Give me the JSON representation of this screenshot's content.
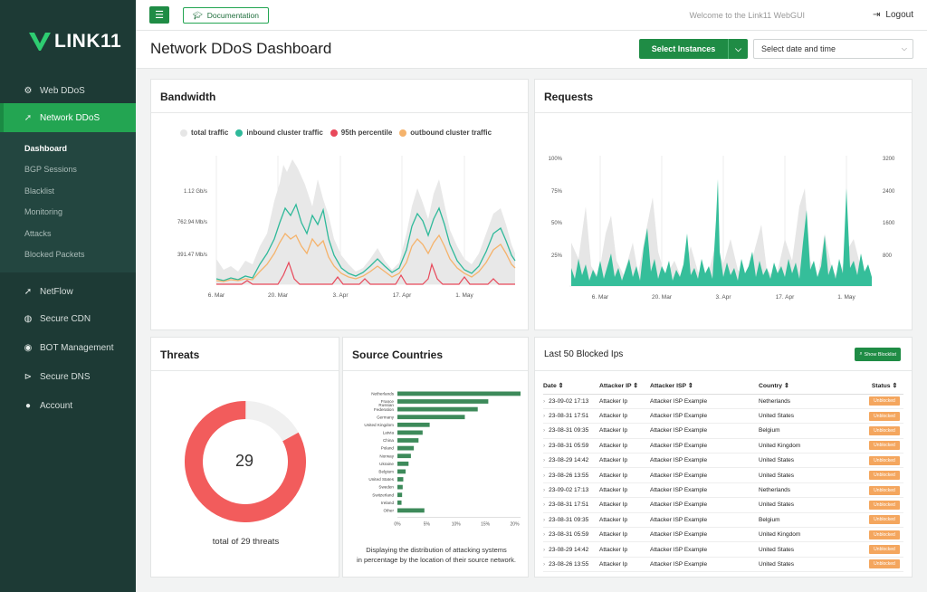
{
  "brand": {
    "name": "LINK11"
  },
  "nav": {
    "items": [
      {
        "label": "Web DDoS",
        "icon": "gears-icon"
      },
      {
        "label": "Network DDoS",
        "icon": "rocket-icon"
      },
      {
        "label": "NetFlow",
        "icon": "rocket-icon"
      },
      {
        "label": "Secure CDN",
        "icon": "globe-icon"
      },
      {
        "label": "BOT Management",
        "icon": "android-icon"
      },
      {
        "label": "Secure DNS",
        "icon": "dns-icon"
      },
      {
        "label": "Account",
        "icon": "user-icon"
      }
    ],
    "sub": [
      "Dashboard",
      "BGP Sessions",
      "Blacklist",
      "Monitoring",
      "Attacks",
      "Blocked Packets"
    ]
  },
  "topbar": {
    "documentation": "Documentation",
    "welcome": "Welcome to the Link11 WebGUI",
    "logout": "Logout"
  },
  "header": {
    "title": "Network DDoS Dashboard",
    "select_instances": "Select Instances",
    "date_placeholder": "Select date and time"
  },
  "bandwidth": {
    "title": "Bandwidth",
    "legend": [
      {
        "label": "total traffic",
        "color": "#e6e6e6"
      },
      {
        "label": "inbound cluster traffic",
        "color": "#2fb99a"
      },
      {
        "label": "95th percentile",
        "color": "#e8485a"
      },
      {
        "label": "outbound cluster traffic",
        "color": "#f5b36c"
      }
    ],
    "y_ticks": [
      "1.12 Gb/s",
      "762.94 Mb/s",
      "391.47 Mb/s"
    ],
    "x_ticks": [
      "6. Mar",
      "20. Mar",
      "3. Apr",
      "17. Apr",
      "1. May"
    ]
  },
  "requests": {
    "title": "Requests",
    "y_left": [
      "100%",
      "75%",
      "50%",
      "25%"
    ],
    "y_right": [
      "3200",
      "2400",
      "1600",
      "800"
    ],
    "x_ticks": [
      "6. Mar",
      "20. Mar",
      "3. Apr",
      "17. Apr",
      "1. May"
    ]
  },
  "threats": {
    "title": "Threats",
    "count": "29",
    "caption": "total of 29 threats",
    "fraction": 0.83,
    "color": "#f25c5c"
  },
  "source_countries": {
    "title": "Source Countries",
    "caption1": "Displaying the distribution of attacking systems",
    "caption2": "in percentage by the location of their source network.",
    "x_ticks": [
      "0%",
      "5%",
      "10%",
      "15%",
      "20%"
    ]
  },
  "chart_data": {
    "type": "bar",
    "orientation": "horizontal",
    "categories": [
      "Netherlands",
      "France",
      "Russian Federation",
      "Germany",
      "United Kingdom",
      "Latvia",
      "China",
      "Poland",
      "Norway",
      "Ukraine",
      "Belgium",
      "United States",
      "Sweden",
      "Switzerland",
      "Ireland",
      "Other"
    ],
    "category_lines": [
      [
        "Netherlands"
      ],
      [
        "France"
      ],
      [
        "Russian",
        "Federation"
      ],
      [
        "Germany"
      ],
      [
        "United Kingdom"
      ],
      [
        "Latvia"
      ],
      [
        "China"
      ],
      [
        "Poland"
      ],
      [
        "Norway"
      ],
      [
        "Ukraine"
      ],
      [
        "Belgium"
      ],
      [
        "United States"
      ],
      [
        "Sweden"
      ],
      [
        "Switzerland"
      ],
      [
        "Ireland"
      ],
      [
        "Other"
      ]
    ],
    "values": [
      21,
      15.5,
      13.7,
      11.5,
      5.5,
      4.3,
      3.6,
      2.8,
      2.3,
      1.9,
      1.4,
      1.0,
      0.9,
      0.8,
      0.7,
      4.6
    ],
    "xlim": [
      0,
      21
    ],
    "color": "#3d8a5a"
  },
  "blocked": {
    "title": "Last 50 Blocked Ips",
    "show_button": "Show Blocklist",
    "columns": [
      "Date",
      "Attacker IP",
      "Attacker ISP",
      "Country",
      "Status"
    ],
    "rows": [
      {
        "date": "23-09-02 17:13",
        "ip": "Attacker Ip",
        "isp": "Attacker ISP Example",
        "country": "Netherlands",
        "status": "Unblocked"
      },
      {
        "date": "23-08-31 17:51",
        "ip": "Attacker Ip",
        "isp": "Attacker ISP Example",
        "country": "United States",
        "status": "Unblocked"
      },
      {
        "date": "23-08-31 09:35",
        "ip": "Attacker Ip",
        "isp": "Attacker ISP Example",
        "country": "Belgium",
        "status": "Unblocked"
      },
      {
        "date": "23-08-31 05:59",
        "ip": "Attacker Ip",
        "isp": "Attacker ISP Example",
        "country": "United Kingdom",
        "status": "Unblocked"
      },
      {
        "date": "23-08-29 14:42",
        "ip": "Attacker Ip",
        "isp": "Attacker ISP Example",
        "country": "United States",
        "status": "Unblocked"
      },
      {
        "date": "23-08-26 13:55",
        "ip": "Attacker Ip",
        "isp": "Attacker ISP Example",
        "country": "United States",
        "status": "Unblocked"
      },
      {
        "date": "23-09-02 17:13",
        "ip": "Attacker Ip",
        "isp": "Attacker ISP Example",
        "country": "Netherlands",
        "status": "Unblocked"
      },
      {
        "date": "23-08-31 17:51",
        "ip": "Attacker Ip",
        "isp": "Attacker ISP Example",
        "country": "United States",
        "status": "Unblocked"
      },
      {
        "date": "23-08-31 09:35",
        "ip": "Attacker Ip",
        "isp": "Attacker ISP Example",
        "country": "Belgium",
        "status": "Unblocked"
      },
      {
        "date": "23-08-31 05:59",
        "ip": "Attacker Ip",
        "isp": "Attacker ISP Example",
        "country": "United Kingdom",
        "status": "Unblocked"
      },
      {
        "date": "23-08-29 14:42",
        "ip": "Attacker Ip",
        "isp": "Attacker ISP Example",
        "country": "United States",
        "status": "Unblocked"
      },
      {
        "date": "23-08-26 13:55",
        "ip": "Attacker Ip",
        "isp": "Attacker ISP Example",
        "country": "United States",
        "status": "Unblocked"
      }
    ]
  }
}
